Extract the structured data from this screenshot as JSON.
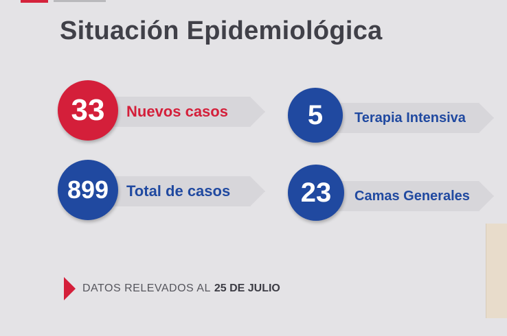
{
  "title": "Situación Epidemiológica",
  "stats": {
    "nuevos": {
      "value": "33",
      "label": "Nuevos casos",
      "color": "#d41f3a"
    },
    "total": {
      "value": "899",
      "label": "Total de casos",
      "color": "#2049a0"
    },
    "terapia": {
      "value": "5",
      "label": "Terapia Intensiva",
      "color": "#2049a0"
    },
    "camas": {
      "value": "23",
      "label": "Camas Generales",
      "color": "#2049a0"
    }
  },
  "footer": {
    "text": "DATOS RELEVADOS AL",
    "date": "25 DE JULIO",
    "icon": "triangle-right-icon"
  },
  "colors": {
    "background": "#e4e3e6",
    "red": "#d41f3a",
    "blue": "#2049a0",
    "title": "#404048"
  }
}
